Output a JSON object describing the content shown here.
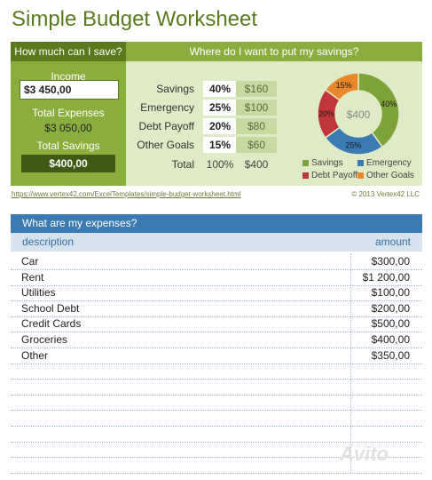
{
  "title": "Simple Budget Worksheet",
  "left_header": "How much can I save?",
  "right_header": "Where do I want to put my savings?",
  "income_label": "Income",
  "income_value": "$3 450,00",
  "total_expenses_label": "Total Expenses",
  "total_expenses_value": "$3 050,00",
  "total_savings_label": "Total Savings",
  "total_savings_value": "$400,00",
  "allocations": [
    {
      "label": "Savings",
      "pct": "40%",
      "amount": "$160"
    },
    {
      "label": "Emergency",
      "pct": "25%",
      "amount": "$100"
    },
    {
      "label": "Debt Payoff",
      "pct": "20%",
      "amount": "$80"
    },
    {
      "label": "Other Goals",
      "pct": "15%",
      "amount": "$60"
    }
  ],
  "total_row": {
    "label": "Total",
    "pct": "100%",
    "amount": "$400"
  },
  "donut": {
    "center": "$400",
    "slices": [
      {
        "name": "Savings",
        "value": 40,
        "label": "40%",
        "color": "#7ea23a"
      },
      {
        "name": "Emergency",
        "value": 25,
        "label": "25%",
        "color": "#3b7ab3"
      },
      {
        "name": "Debt Payoff",
        "value": 20,
        "label": "20%",
        "color": "#c0363a"
      },
      {
        "name": "Other Goals",
        "value": 15,
        "label": "15%",
        "color": "#e8882a"
      }
    ]
  },
  "legend": [
    "Savings",
    "Emergency",
    "Debt Payoff",
    "Other Goals"
  ],
  "url": "https://www.vertex42.com/ExcelTemplates/simple-budget-worksheet.html",
  "copyright": "© 2013 Vertex42 LLC",
  "expenses_header": "What are my expenses?",
  "col_description": "description",
  "col_amount": "amount",
  "expenses": [
    {
      "description": "Car",
      "amount": "$300,00"
    },
    {
      "description": "Rent",
      "amount": "$1 200,00"
    },
    {
      "description": "Utilities",
      "amount": "$100,00"
    },
    {
      "description": "School Debt",
      "amount": "$200,00"
    },
    {
      "description": "Credit Cards",
      "amount": "$500,00"
    },
    {
      "description": "Groceries",
      "amount": "$400,00"
    },
    {
      "description": "Other",
      "amount": "$350,00"
    },
    {
      "description": "",
      "amount": ""
    },
    {
      "description": "",
      "amount": ""
    },
    {
      "description": "",
      "amount": ""
    },
    {
      "description": "",
      "amount": ""
    },
    {
      "description": "",
      "amount": ""
    },
    {
      "description": "",
      "amount": ""
    },
    {
      "description": "",
      "amount": ""
    }
  ],
  "watermark": "Avito"
}
